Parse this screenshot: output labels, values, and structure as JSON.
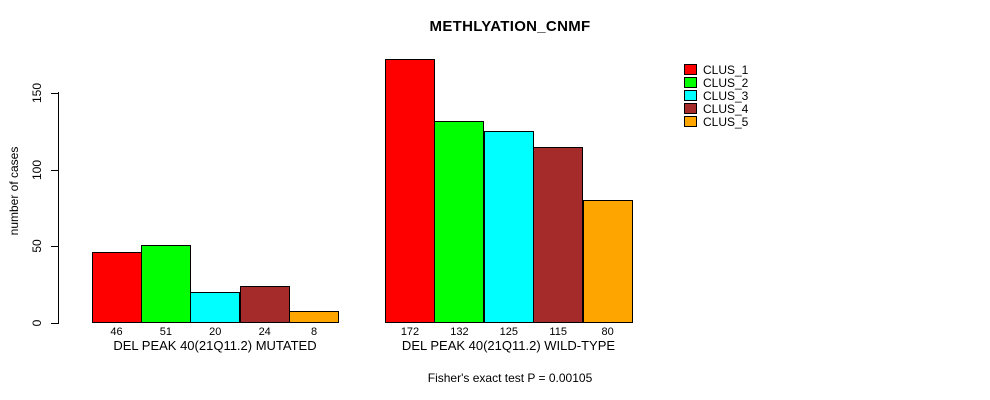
{
  "title": "METHLYATION_CNMF",
  "footer": "Fisher's exact test P = 0.00105",
  "chart_data": {
    "type": "bar",
    "title": "METHLYATION_CNMF",
    "xlabel": "",
    "ylabel": "number of cases",
    "ylim": [
      0,
      172
    ],
    "yticks": [
      0,
      50,
      100,
      150
    ],
    "grid": false,
    "legend_position": "top-right",
    "bar_value_labels_shown": true,
    "annotation": "Fisher's exact test P = 0.00105",
    "categories": [
      "DEL PEAK 40(21Q11.2) MUTATED",
      "DEL PEAK 40(21Q11.2) WILD-TYPE"
    ],
    "series": [
      {
        "name": "CLUS_1",
        "color": "#FF0000",
        "values": [
          46,
          172
        ]
      },
      {
        "name": "CLUS_2",
        "color": "#00FF00",
        "values": [
          51,
          132
        ]
      },
      {
        "name": "CLUS_3",
        "color": "#00FFFF",
        "values": [
          20,
          125
        ]
      },
      {
        "name": "CLUS_4",
        "color": "#A52A2A",
        "values": [
          24,
          115
        ]
      },
      {
        "name": "CLUS_5",
        "color": "#FFA500",
        "values": [
          8,
          80
        ]
      }
    ]
  }
}
